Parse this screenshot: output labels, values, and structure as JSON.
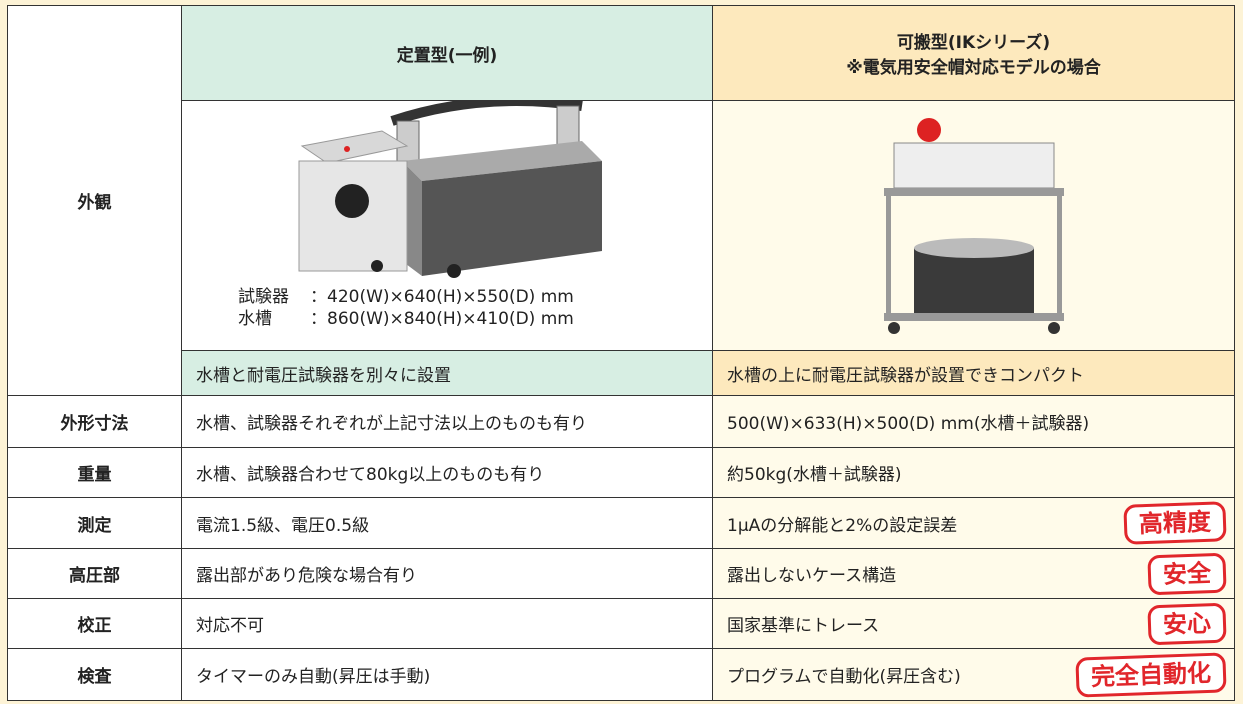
{
  "table": {
    "columns": [
      [
        "定置型(一例)"
      ],
      [
        "可搬型(IKシリーズ)",
        "※電気用安全帽対応モデルの場合"
      ]
    ],
    "appearance": {
      "label": "外観",
      "dims": [
        {
          "name": "試験器",
          "value": "：420(W)×640(H)×550(D) mm"
        },
        {
          "name": "水槽",
          "value": "：860(W)×840(H)×410(D) mm"
        }
      ],
      "notes": [
        "水槽と耐電圧試験器を別々に設置",
        "水槽の上に耐電圧試験器が設置できコンパクト"
      ]
    },
    "rows": [
      {
        "label": "外形寸法",
        "stationary": "水槽、試験器それぞれが上記寸法以上のものも有り",
        "portable": "500(W)×633(H)×500(D) mm(水槽＋試験器)"
      },
      {
        "label": "重量",
        "stationary": "水槽、試験器合わせて80kg以上のものも有り",
        "portable": "約50kg(水槽＋試験器)"
      },
      {
        "label": "測定",
        "stationary": "電流1.5級、電圧0.5級",
        "portable": "1μAの分解能と2%の設定誤差",
        "badge": "高精度"
      },
      {
        "label": "高圧部",
        "stationary": "露出部があり危険な場合有り",
        "portable": "露出しないケース構造",
        "badge": "安全"
      },
      {
        "label": "校正",
        "stationary": "対応不可",
        "portable": "国家基準にトレース",
        "badge": "安心"
      },
      {
        "label": "検査",
        "stationary": "タイマーのみ自動(昇圧は手動)",
        "portable": "プログラムで自動化(昇圧含む)",
        "badge": "完全自動化"
      }
    ]
  }
}
